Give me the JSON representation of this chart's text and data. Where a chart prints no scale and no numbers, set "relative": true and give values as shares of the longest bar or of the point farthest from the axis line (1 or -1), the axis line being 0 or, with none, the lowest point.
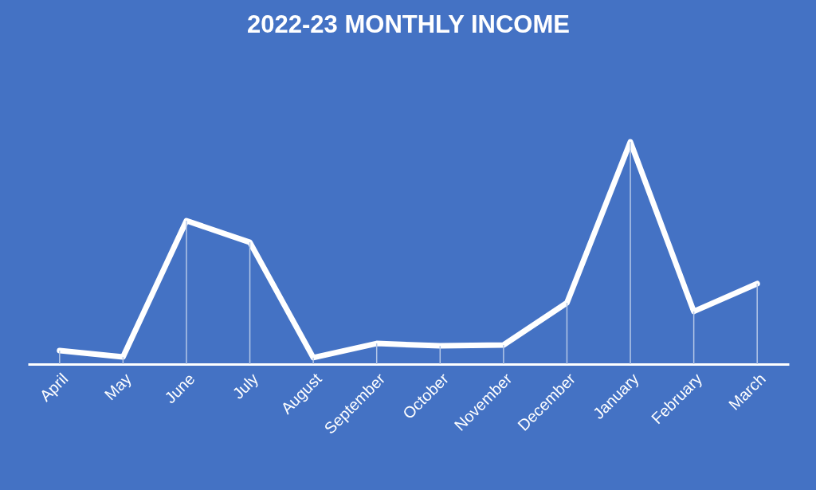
{
  "chart_data": {
    "type": "line",
    "title": "2022-23 MONTHLY INCOME",
    "relative": true,
    "categories": [
      "April",
      "May",
      "June",
      "July",
      "August",
      "September",
      "October",
      "November",
      "December",
      "January",
      "February",
      "March"
    ],
    "series": [
      {
        "color": "#ffffff",
        "values": [
          0.061,
          0.032,
          0.645,
          0.548,
          0.029,
          0.093,
          0.082,
          0.086,
          0.276,
          1,
          0.237,
          0.362
        ]
      },
      {
        "type": "bar",
        "color": "#b4c7e7",
        "values": [
          0.061,
          0.032,
          0.645,
          0.548,
          0.029,
          0.093,
          0.082,
          0.086,
          0.276,
          1,
          0.237,
          0.362
        ]
      }
    ],
    "grid": false,
    "legend": false,
    "marker": "none",
    "line_style": "solid"
  }
}
